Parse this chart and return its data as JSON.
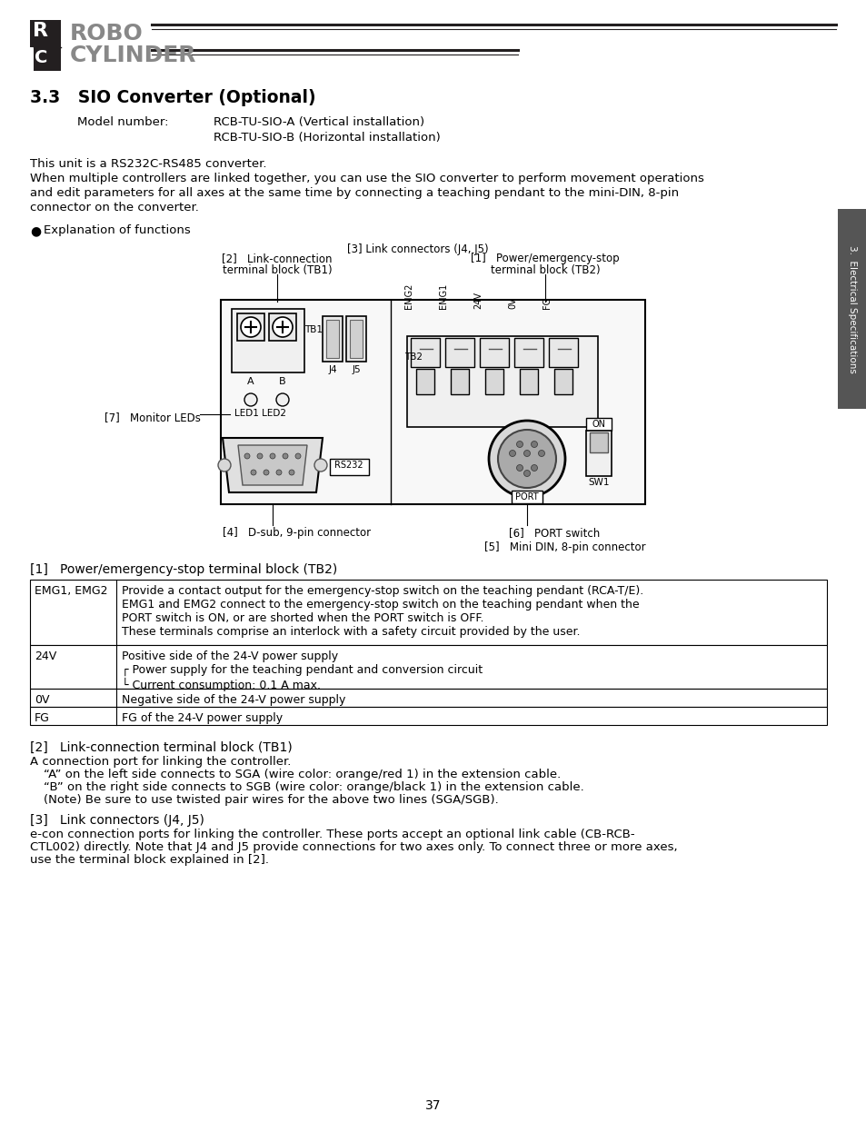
{
  "page_bg": "#ffffff",
  "section_title": "3.3   SIO Converter (Optional)",
  "model_label": "Model number:",
  "model_line1": "RCB-TU-SIO-A (Vertical installation)",
  "model_line2": "RCB-TU-SIO-B (Horizontal installation)",
  "intro_line1": "This unit is a RS232C-RS485 converter.",
  "intro_line2": "When multiple controllers are linked together, you can use the SIO converter to perform movement operations",
  "intro_line3": "and edit parameters for all axes at the same time by connecting a teaching pendant to the mini-DIN, 8-pin",
  "intro_line4": "connector on the converter.",
  "bullet_text": "Explanation of functions",
  "label_3": "[3] Link connectors (J4, J5)",
  "label_2_line1": "[2]   Link-connection",
  "label_2_line2": "terminal block (TB1)",
  "label_1_line1": "[1]   Power/emergency-stop",
  "label_1_line2": "terminal block (TB2)",
  "label_7": "[7]   Monitor LEDs",
  "label_4": "[4]   D-sub, 9-pin connector",
  "label_6": "[6]   PORT switch",
  "label_5": "[5]   Mini DIN, 8-pin connector",
  "section1_heading": "[1]   Power/emergency-stop terminal block (TB2)",
  "table_rows": [
    {
      "col1": "EMG1, EMG2",
      "col2": "Provide a contact output for the emergency-stop switch on the teaching pendant (RCA-T/E).\nEMG1 and EMG2 connect to the emergency-stop switch on the teaching pendant when the\nPORT switch is ON, or are shorted when the PORT switch is OFF.\nThese terminals comprise an interlock with a safety circuit provided by the user."
    },
    {
      "col1": "24V",
      "col2": "Positive side of the 24-V power supply\n┌ Power supply for the teaching pendant and conversion circuit\n└ Current consumption: 0.1 A max."
    },
    {
      "col1": "0V",
      "col2": "Negative side of the 24-V power supply"
    },
    {
      "col1": "FG",
      "col2": "FG of the 24-V power supply"
    }
  ],
  "section2_heading": "[2]   Link-connection terminal block (TB1)",
  "section2_line1": "A connection port for linking the controller.",
  "section2_line2": "“A” on the left side connects to SGA (wire color: orange/red 1) in the extension cable.",
  "section2_line3": "“B” on the right side connects to SGB (wire color: orange/black 1) in the extension cable.",
  "section2_line4": "(Note) Be sure to use twisted pair wires for the above two lines (SGA/SGB).",
  "section3_heading": "[3]   Link connectors (J4, J5)",
  "section3_line1": "e-con connection ports for linking the controller. These ports accept an optional link cable (CB-RCB-",
  "section3_line2": "CTL002) directly. Note that J4 and J5 provide connections for two axes only. To connect three or more axes,",
  "section3_line3": "use the terminal block explained in [2].",
  "page_number": "37",
  "side_tab": "3.  Electrical Specifications"
}
